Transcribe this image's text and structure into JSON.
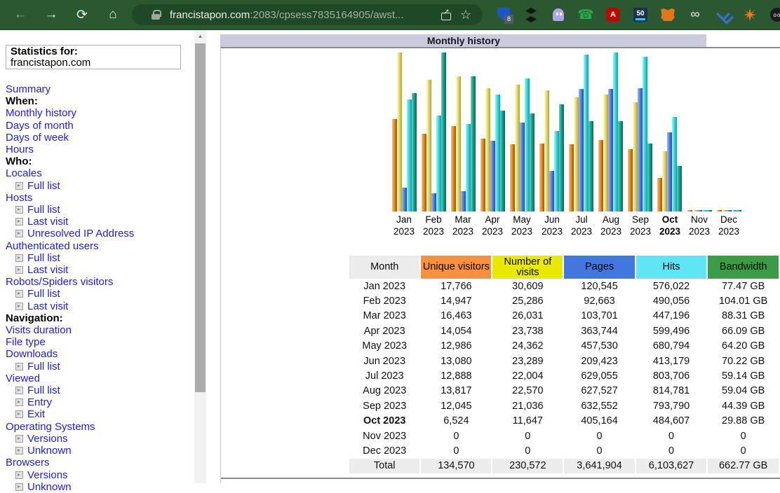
{
  "browser": {
    "url_host": "francistapon.com",
    "url_rest": ":2083/cpsess7835164905/awst...",
    "icons": {
      "back": "←",
      "forward": "→",
      "reload": "⟳",
      "home": "⌂",
      "share": "box-arrow-up",
      "star": "☆",
      "lock": "padlock",
      "scroll_up": "▲"
    },
    "extensions": [
      {
        "name": "bitwarden-shield",
        "badge": "8"
      },
      {
        "name": "buffer-stack"
      },
      {
        "name": "ghostery-ghost"
      },
      {
        "name": "voice-phone",
        "glyph": "☎"
      },
      {
        "name": "acrobat",
        "glyph": "A"
      },
      {
        "name": "fifty-badge",
        "glyph": "50"
      },
      {
        "name": "metamask-fox"
      },
      {
        "name": "infinity",
        "glyph": "∞"
      },
      {
        "name": "chevrons"
      },
      {
        "name": "starburst"
      },
      {
        "name": "octo-circle",
        "glyph": "oo"
      }
    ]
  },
  "sidebar": {
    "stats_label": "Statistics for:",
    "domain": "francistapon.com",
    "items": [
      {
        "label": "Summary",
        "type": "link"
      },
      {
        "label": "When:",
        "type": "header"
      },
      {
        "label": "Monthly history",
        "type": "link"
      },
      {
        "label": "Days of month",
        "type": "link"
      },
      {
        "label": "Days of week",
        "type": "link"
      },
      {
        "label": "Hours",
        "type": "link"
      },
      {
        "label": "Who:",
        "type": "header"
      },
      {
        "label": "Locales",
        "type": "link"
      },
      {
        "label": "Full list",
        "type": "sub"
      },
      {
        "label": "Hosts",
        "type": "link"
      },
      {
        "label": "Full list",
        "type": "sub"
      },
      {
        "label": "Last visit",
        "type": "sub"
      },
      {
        "label": "Unresolved IP Address",
        "type": "sub"
      },
      {
        "label": "Authenticated users",
        "type": "link"
      },
      {
        "label": "Full list",
        "type": "sub"
      },
      {
        "label": "Last visit",
        "type": "sub"
      },
      {
        "label": "Robots/Spiders visitors",
        "type": "link"
      },
      {
        "label": "Full list",
        "type": "sub"
      },
      {
        "label": "Last visit",
        "type": "sub"
      },
      {
        "label": "Navigation:",
        "type": "header"
      },
      {
        "label": "Visits duration",
        "type": "link"
      },
      {
        "label": "File type",
        "type": "link"
      },
      {
        "label": "Downloads",
        "type": "link"
      },
      {
        "label": "Full list",
        "type": "sub"
      },
      {
        "label": "Viewed",
        "type": "link"
      },
      {
        "label": "Full list",
        "type": "sub"
      },
      {
        "label": "Entry",
        "type": "sub"
      },
      {
        "label": "Exit",
        "type": "sub"
      },
      {
        "label": "Operating Systems",
        "type": "link"
      },
      {
        "label": "Versions",
        "type": "sub"
      },
      {
        "label": "Unknown",
        "type": "sub"
      },
      {
        "label": "Browsers",
        "type": "link"
      },
      {
        "label": "Versions",
        "type": "sub"
      },
      {
        "label": "Unknown",
        "type": "sub"
      }
    ]
  },
  "main": {
    "title": "Monthly history"
  },
  "chart_data": {
    "type": "bar",
    "title": "Monthly history",
    "categories": [
      "Jan 2023",
      "Feb 2023",
      "Mar 2023",
      "Apr 2023",
      "May 2023",
      "Jun 2023",
      "Jul 2023",
      "Aug 2023",
      "Sep 2023",
      "Oct 2023",
      "Nov 2023",
      "Dec 2023"
    ],
    "emphasized_category": "Oct 2023",
    "series": [
      {
        "name": "Unique visitors",
        "color": "#e08a28",
        "values": [
          17766,
          14947,
          16463,
          14054,
          12986,
          13080,
          12888,
          13817,
          12045,
          6524,
          0,
          0
        ]
      },
      {
        "name": "Number of visits",
        "color": "#e3d87e",
        "values": [
          30609,
          25286,
          26031,
          23738,
          24362,
          23289,
          22004,
          22570,
          21036,
          11647,
          0,
          0
        ]
      },
      {
        "name": "Pages",
        "color": "#5b83db",
        "values": [
          120545,
          92663,
          103701,
          363744,
          457530,
          209423,
          629055,
          627527,
          632552,
          405164,
          0,
          0
        ]
      },
      {
        "name": "Hits",
        "color": "#4fd1dc",
        "values": [
          576022,
          490056,
          447196,
          599496,
          680794,
          413179,
          803706,
          814781,
          793790,
          484607,
          0,
          0
        ]
      },
      {
        "name": "Bandwidth (GB)",
        "color": "#17a28c",
        "values": [
          77.47,
          104.01,
          88.31,
          66.09,
          64.2,
          70.22,
          59.14,
          59.04,
          44.39,
          29.88,
          0,
          0
        ]
      }
    ],
    "normalization": "unique visitors & visits scaled to max visits; pages & hits scaled to max hits; bandwidth scaled to max bandwidth",
    "grid": false,
    "legend_position": "none"
  },
  "table": {
    "headers": [
      "Month",
      "Unique visitors",
      "Number of visits",
      "Pages",
      "Hits",
      "Bandwidth"
    ],
    "header_colors": [
      "#ececec",
      "#f7913d",
      "#e8e800",
      "#4477dd",
      "#5fe6f5",
      "#3d9b48"
    ],
    "rows": [
      [
        "Jan 2023",
        "17,766",
        "30,609",
        "120,545",
        "576,022",
        "77.47 GB"
      ],
      [
        "Feb 2023",
        "14,947",
        "25,286",
        "92,663",
        "490,056",
        "104.01 GB"
      ],
      [
        "Mar 2023",
        "16,463",
        "26,031",
        "103,701",
        "447,196",
        "88.31 GB"
      ],
      [
        "Apr 2023",
        "14,054",
        "23,738",
        "363,744",
        "599,496",
        "66.09 GB"
      ],
      [
        "May 2023",
        "12,986",
        "24,362",
        "457,530",
        "680,794",
        "64.20 GB"
      ],
      [
        "Jun 2023",
        "13,080",
        "23,289",
        "209,423",
        "413,179",
        "70.22 GB"
      ],
      [
        "Jul 2023",
        "12,888",
        "22,004",
        "629,055",
        "803,706",
        "59.14 GB"
      ],
      [
        "Aug 2023",
        "13,817",
        "22,570",
        "627,527",
        "814,781",
        "59.04 GB"
      ],
      [
        "Sep 2023",
        "12,045",
        "21,036",
        "632,552",
        "793,790",
        "44.39 GB"
      ],
      [
        "Oct 2023",
        "6,524",
        "11,647",
        "405,164",
        "484,607",
        "29.88 GB"
      ],
      [
        "Nov 2023",
        "0",
        "0",
        "0",
        "0",
        "0"
      ],
      [
        "Dec 2023",
        "0",
        "0",
        "0",
        "0",
        "0"
      ]
    ],
    "emphasized_row": "Oct 2023",
    "total_row": [
      "Total",
      "134,570",
      "230,572",
      "3,641,904",
      "6,103,627",
      "662.77 GB"
    ]
  }
}
